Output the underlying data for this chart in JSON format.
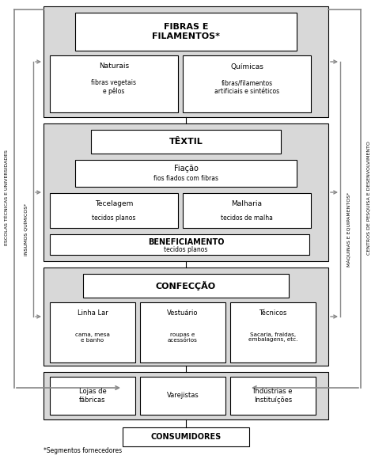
{
  "bg_color": "#ffffff",
  "box_bg_light": "#d8d8d8",
  "box_bg_white": "#ffffff",
  "footnote": "*Segmentos fornecedores",
  "fibras_title": "FIBRAS E\nFILAMENTOS*",
  "naturais_title": "Naturais",
  "naturais_sub": "fibras vegetais\ne pêlos",
  "quimicas_title": "Químicas",
  "quimicas_sub": "fibras/filamentos\nartificiais e sintéticos",
  "textil_title": "TÊXTIL",
  "fiacao_title": "Fiação",
  "fiacao_sub": "fios fiados com fibras",
  "tecelagem_title": "Tecelagem",
  "tecelagem_sub": "tecidos planos",
  "malharia_title": "Malharia",
  "malharia_sub": "tecidos de malha",
  "beneficiamento_title": "BENEFICIAMENTO",
  "beneficiamento_sub": "tecidos planos",
  "confeccao_title": "CONFECÇÃO",
  "linhaLar_title": "Linha Lar",
  "linhaLar_sub": "cama, mesa\ne banho",
  "vestuario_title": "Vestuário",
  "vestuario_sub": "roupas e\nacessórios",
  "tecnicos_title": "Técnicos",
  "tecnicos_sub": "Sacaria, fraldas,\nembalagens, etc.",
  "lojas_title": "Lojas de\nfábricas",
  "varejistas_title": "Varejistas",
  "industrias_title": "Indústrias e\nInstituíções",
  "consumidores_title": "CONSUMIDORES",
  "label_escolas": "ESCOLAS TÉCNICAS E UNIVERSIDADES",
  "label_insumos": "INSUMOS QUÍMICOS*",
  "label_maquinas": "MÁQUINAS E EQUIPAMENTOS*",
  "label_centros": "CENTROS DE PESQUISA E DESENVOLVIMENTO",
  "arrow_color": "#888888"
}
